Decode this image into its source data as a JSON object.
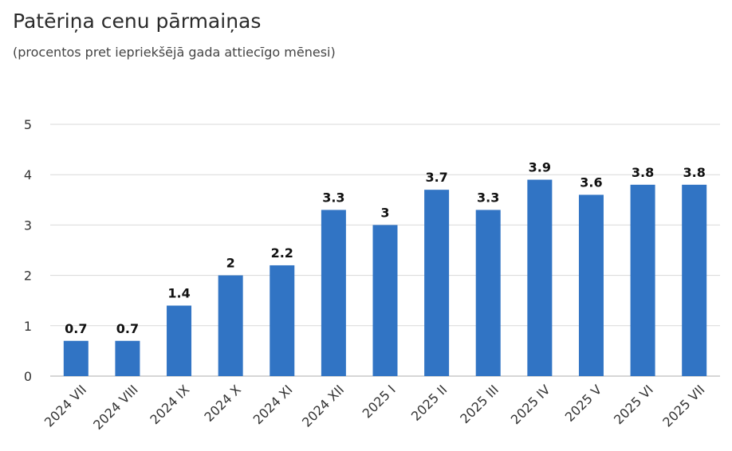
{
  "chart_data": {
    "type": "bar",
    "title": "Patēriņa cenu pārmaiņas",
    "subtitle": "(procentos pret iepriekšējā gada attiecīgo mēnesi)",
    "xlabel": "",
    "ylabel": "",
    "categories": [
      "2024 VII",
      "2024 VIII",
      "2024 IX",
      "2024 X",
      "2024 XI",
      "2024 XII",
      "2025 I",
      "2025 II",
      "2025 III",
      "2025 IV",
      "2025 V",
      "2025 VI",
      "2025 VII"
    ],
    "values": [
      0.7,
      0.7,
      1.4,
      2,
      2.2,
      3.3,
      3,
      3.7,
      3.3,
      3.9,
      3.6,
      3.8,
      3.8
    ],
    "data_labels": [
      "0.7",
      "0.7",
      "1.4",
      "2",
      "2.2",
      "3.3",
      "3",
      "3.7",
      "3.3",
      "3.9",
      "3.6",
      "3.8",
      "3.8"
    ],
    "ylim": [
      0,
      5
    ],
    "yticks": [
      "0",
      "1",
      "2",
      "3",
      "4",
      "5"
    ],
    "grid": true,
    "legend": "none",
    "bar_color": "#3174c4",
    "grid_color": "#d9d9d9"
  }
}
